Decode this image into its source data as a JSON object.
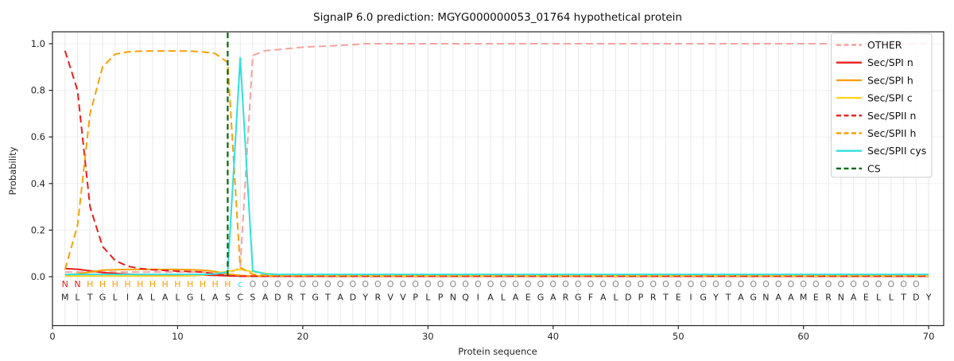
{
  "chart_data": {
    "type": "line",
    "title": "SignalP 6.0 prediction: MGYG000000053_01764 hypothetical protein",
    "xlabel": "Protein sequence",
    "ylabel": "Probability",
    "x_start": 1,
    "x_end": 70,
    "xticks": [
      0,
      10,
      20,
      30,
      40,
      50,
      60,
      70
    ],
    "xtick_labels": [
      "0",
      "10",
      "20",
      "30",
      "40",
      "50",
      "60",
      "70"
    ],
    "yticks": [
      0.0,
      0.2,
      0.4,
      0.6,
      0.8,
      1.0
    ],
    "ytick_labels": [
      "0.0",
      "0.2",
      "0.4",
      "0.6",
      "0.8",
      "1.0"
    ],
    "xlim": [
      0,
      71.2
    ],
    "ylim": [
      -0.21,
      1.05
    ],
    "grid": "light vertical line per residue, light horizontal line per y-tick",
    "legend_position": "upper right",
    "series": [
      {
        "name": "OTHER",
        "color": "#f5a3a0",
        "dashed": true,
        "values": [
          0.02,
          0.02,
          0.02,
          0.02,
          0.02,
          0.02,
          0.02,
          0.02,
          0.02,
          0.02,
          0.02,
          0.02,
          0.015,
          0.012,
          0.04,
          0.95,
          0.97,
          0.975,
          0.98,
          0.985,
          0.988,
          0.99,
          0.993,
          0.996,
          1.0,
          1.0,
          1.0,
          1.0,
          1.0,
          1.0,
          1.0,
          1.0,
          1.0,
          1.0,
          1.0,
          1.0,
          1.0,
          1.0,
          1.0,
          1.0,
          1.0,
          1.0,
          1.0,
          1.0,
          1.0,
          1.0,
          1.0,
          1.0,
          1.0,
          1.0,
          1.0,
          1.0,
          1.0,
          1.0,
          1.0,
          1.0,
          1.0,
          1.0,
          1.0,
          1.0,
          1.0,
          1.0,
          1.0,
          1.0,
          1.0,
          1.0,
          1.0,
          1.0,
          1.0,
          1.0
        ]
      },
      {
        "name": "Sec/SPI n",
        "color": "#e8201d",
        "dashed": false,
        "values": [
          0.035,
          0.032,
          0.025,
          0.018,
          0.014,
          0.011,
          0.009,
          0.008,
          0.007,
          0.007,
          0.007,
          0.007,
          0.006,
          0.004,
          0.003,
          0.002,
          0.002,
          0.002,
          0.002,
          0.002,
          0.002,
          0.002,
          0.002,
          0.002,
          0.002,
          0.002,
          0.002,
          0.002,
          0.002,
          0.002,
          0.002,
          0.002,
          0.002,
          0.002,
          0.002,
          0.002,
          0.002,
          0.002,
          0.002,
          0.002,
          0.002,
          0.002,
          0.002,
          0.002,
          0.002,
          0.002,
          0.002,
          0.002,
          0.002,
          0.002,
          0.002,
          0.002,
          0.002,
          0.002,
          0.002,
          0.002,
          0.002,
          0.002,
          0.002,
          0.002,
          0.002,
          0.002,
          0.002,
          0.002,
          0.002,
          0.002,
          0.002,
          0.002,
          0.002,
          0.002
        ]
      },
      {
        "name": "Sec/SPI h",
        "color": "#f9a008",
        "dashed": false,
        "values": [
          0.008,
          0.012,
          0.02,
          0.028,
          0.03,
          0.031,
          0.031,
          0.031,
          0.031,
          0.031,
          0.03,
          0.028,
          0.022,
          0.012,
          0.005,
          0.003,
          0.003,
          0.003,
          0.003,
          0.003,
          0.003,
          0.003,
          0.003,
          0.003,
          0.003,
          0.003,
          0.003,
          0.003,
          0.003,
          0.003,
          0.003,
          0.003,
          0.003,
          0.003,
          0.003,
          0.003,
          0.003,
          0.003,
          0.003,
          0.003,
          0.003,
          0.003,
          0.003,
          0.003,
          0.003,
          0.003,
          0.003,
          0.003,
          0.003,
          0.003,
          0.003,
          0.003,
          0.003,
          0.003,
          0.003,
          0.003,
          0.003,
          0.003,
          0.003,
          0.003,
          0.003,
          0.003,
          0.003,
          0.003,
          0.003,
          0.003,
          0.003,
          0.003,
          0.003,
          0.003
        ]
      },
      {
        "name": "Sec/SPI c",
        "color": "#ffd21f",
        "dashed": false,
        "values": [
          0.003,
          0.003,
          0.003,
          0.003,
          0.003,
          0.003,
          0.003,
          0.003,
          0.003,
          0.003,
          0.004,
          0.007,
          0.013,
          0.024,
          0.031,
          0.022,
          0.014,
          0.009,
          0.008,
          0.007,
          0.006,
          0.005,
          0.004,
          0.004,
          0.004,
          0.004,
          0.004,
          0.004,
          0.004,
          0.004,
          0.004,
          0.004,
          0.004,
          0.004,
          0.004,
          0.004,
          0.004,
          0.004,
          0.004,
          0.004,
          0.004,
          0.004,
          0.004,
          0.004,
          0.004,
          0.004,
          0.004,
          0.004,
          0.004,
          0.004,
          0.004,
          0.004,
          0.004,
          0.004,
          0.004,
          0.004,
          0.004,
          0.004,
          0.004,
          0.004,
          0.004,
          0.004,
          0.004,
          0.004,
          0.004,
          0.004,
          0.004,
          0.004,
          0.004,
          0.004
        ]
      },
      {
        "name": "Sec/SPII n",
        "color": "#e8201d",
        "dashed": true,
        "values": [
          0.97,
          0.8,
          0.3,
          0.13,
          0.07,
          0.045,
          0.035,
          0.03,
          0.027,
          0.024,
          0.022,
          0.02,
          0.012,
          0.004,
          0.002,
          0.002,
          0.002,
          0.002,
          0.002,
          0.002,
          0.002,
          0.002,
          0.002,
          0.002,
          0.002,
          0.002,
          0.002,
          0.002,
          0.002,
          0.002,
          0.002,
          0.002,
          0.002,
          0.002,
          0.002,
          0.002,
          0.002,
          0.002,
          0.002,
          0.002,
          0.002,
          0.002,
          0.002,
          0.002,
          0.002,
          0.002,
          0.002,
          0.002,
          0.002,
          0.002,
          0.002,
          0.002,
          0.002,
          0.002,
          0.002,
          0.002,
          0.002,
          0.002,
          0.002,
          0.002,
          0.002,
          0.002,
          0.002,
          0.002,
          0.002,
          0.002,
          0.002,
          0.002,
          0.002,
          0.002
        ]
      },
      {
        "name": "Sec/SPII h",
        "color": "#f9a008",
        "dashed": true,
        "values": [
          0.03,
          0.22,
          0.7,
          0.9,
          0.955,
          0.965,
          0.968,
          0.969,
          0.969,
          0.969,
          0.968,
          0.965,
          0.958,
          0.92,
          0.04,
          0.01,
          0.006,
          0.006,
          0.006,
          0.006,
          0.006,
          0.006,
          0.006,
          0.006,
          0.006,
          0.006,
          0.006,
          0.006,
          0.006,
          0.006,
          0.006,
          0.006,
          0.006,
          0.006,
          0.006,
          0.006,
          0.006,
          0.006,
          0.006,
          0.006,
          0.006,
          0.006,
          0.006,
          0.006,
          0.006,
          0.006,
          0.006,
          0.006,
          0.006,
          0.006,
          0.006,
          0.006,
          0.006,
          0.006,
          0.006,
          0.006,
          0.006,
          0.006,
          0.006,
          0.006,
          0.006,
          0.006,
          0.006,
          0.006,
          0.006,
          0.006,
          0.006,
          0.006,
          0.006,
          0.006
        ]
      },
      {
        "name": "Sec/SPII cys",
        "color": "#2ee0e0",
        "dashed": false,
        "values": [
          0.01,
          0.01,
          0.01,
          0.01,
          0.01,
          0.01,
          0.01,
          0.01,
          0.01,
          0.01,
          0.01,
          0.01,
          0.012,
          0.02,
          0.94,
          0.025,
          0.012,
          0.01,
          0.01,
          0.01,
          0.01,
          0.01,
          0.01,
          0.01,
          0.01,
          0.01,
          0.01,
          0.01,
          0.01,
          0.01,
          0.01,
          0.01,
          0.01,
          0.01,
          0.01,
          0.01,
          0.01,
          0.01,
          0.01,
          0.01,
          0.01,
          0.01,
          0.01,
          0.01,
          0.01,
          0.01,
          0.01,
          0.01,
          0.01,
          0.01,
          0.01,
          0.01,
          0.01,
          0.01,
          0.01,
          0.01,
          0.01,
          0.01,
          0.01,
          0.01,
          0.01,
          0.01,
          0.01,
          0.01,
          0.01,
          0.01,
          0.01,
          0.01,
          0.01,
          0.01
        ]
      }
    ],
    "cs_marker": {
      "label": "CS",
      "position": 14,
      "color": "#076907",
      "dashed": true
    },
    "legend_labels": [
      "OTHER",
      "Sec/SPI n",
      "Sec/SPI h",
      "Sec/SPI c",
      "Sec/SPII n",
      "Sec/SPII h",
      "Sec/SPII cys",
      "CS"
    ],
    "sequence": "MLTGLIALALGLASCSADRTGTADYRVVPLPNQIALAEGARGFALDPRTEIGYTAGNAAMERNAELLTDY",
    "states": "NNHHHHHHHHHHHHcOOOOOOOOOOOOOOOOOOOOOOOOOOOOOOOOOOOOOOOOOOOOOOOOOOOOOO",
    "state_colors": {
      "N": "#e8201d",
      "H": "#f9a008",
      "c": "#2ee0e0",
      "O": "#8a8a8a"
    },
    "sequence_color": "#262626",
    "axis_color": "#262626",
    "grid_color_vertical": "#e9e9e9",
    "grid_color_horizontal": "#f0f0f0"
  }
}
